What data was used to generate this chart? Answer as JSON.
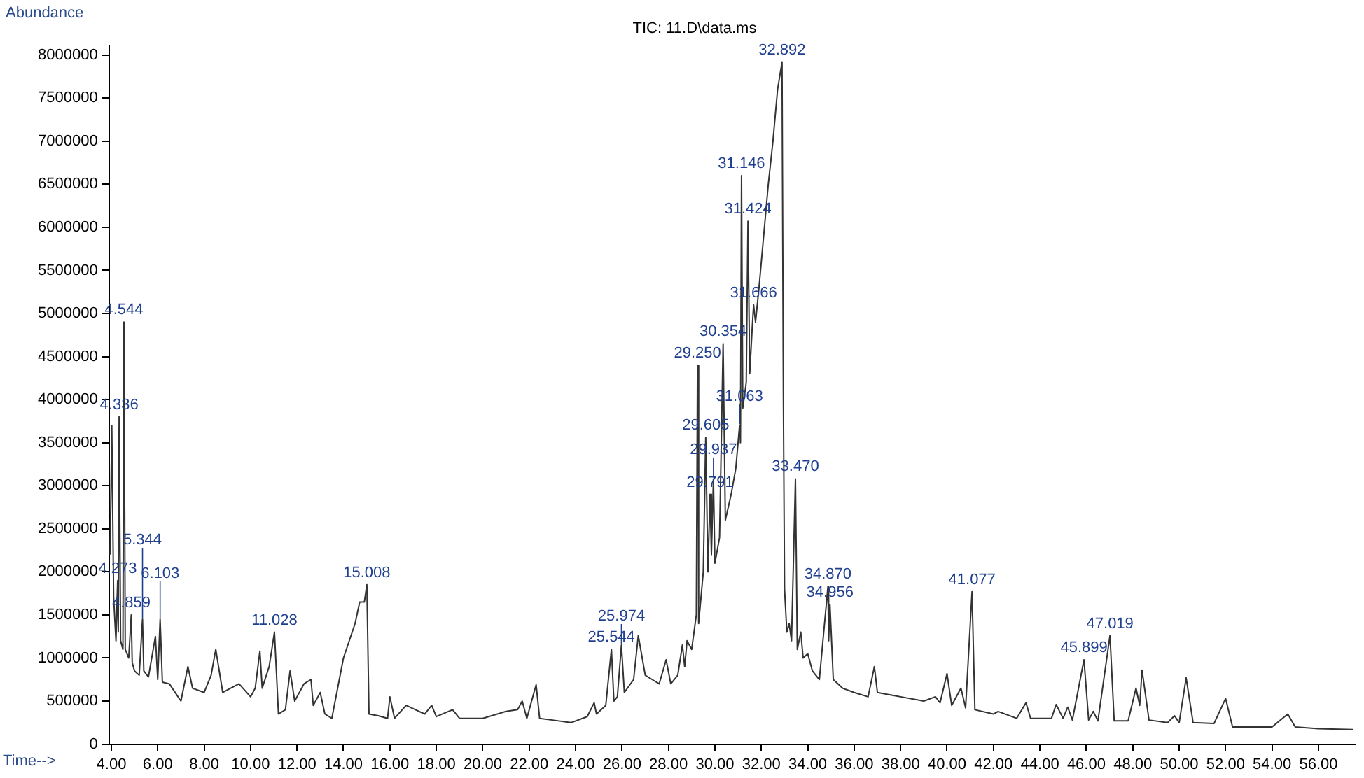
{
  "chart_data": {
    "type": "line",
    "title": "TIC: 11.D\\data.ms",
    "xlabel": "Time-->",
    "ylabel": "Abundance",
    "xlim": [
      3.9,
      57.6
    ],
    "ylim": [
      0,
      8100000
    ],
    "xticks": [
      {
        "value": 4,
        "label": "4.00"
      },
      {
        "value": 6,
        "label": "6.00"
      },
      {
        "value": 8,
        "label": "8.00"
      },
      {
        "value": 10,
        "label": "10.00"
      },
      {
        "value": 12,
        "label": "12.00"
      },
      {
        "value": 14,
        "label": "14.00"
      },
      {
        "value": 16,
        "label": "16.00"
      },
      {
        "value": 18,
        "label": "18.00"
      },
      {
        "value": 20,
        "label": "20.00"
      },
      {
        "value": 22,
        "label": "22.00"
      },
      {
        "value": 24,
        "label": "24.00"
      },
      {
        "value": 26,
        "label": "26.00"
      },
      {
        "value": 28,
        "label": "28.00"
      },
      {
        "value": 30,
        "label": "30.00"
      },
      {
        "value": 32,
        "label": "32.00"
      },
      {
        "value": 34,
        "label": "34.00"
      },
      {
        "value": 36,
        "label": "36.00"
      },
      {
        "value": 38,
        "label": "38.00"
      },
      {
        "value": 40,
        "label": "40.00"
      },
      {
        "value": 42,
        "label": "42.00"
      },
      {
        "value": 44,
        "label": "44.00"
      },
      {
        "value": 46,
        "label": "46.00"
      },
      {
        "value": 48,
        "label": "48.00"
      },
      {
        "value": 50,
        "label": "50.00"
      },
      {
        "value": 52,
        "label": "52.00"
      },
      {
        "value": 54,
        "label": "54.00"
      },
      {
        "value": 56,
        "label": "56.00"
      }
    ],
    "yticks": [
      0,
      500000,
      1000000,
      1500000,
      2000000,
      2500000,
      3000000,
      3500000,
      4000000,
      4500000,
      5000000,
      5500000,
      6000000,
      6500000,
      7000000,
      7500000,
      8000000
    ],
    "grid": false,
    "legend": false,
    "marker": "none",
    "line_style": "solid",
    "series": [
      {
        "color": "#333333",
        "x": [
          3.95,
          4.02,
          4.1,
          4.2,
          4.273,
          4.3,
          4.336,
          4.4,
          4.5,
          4.544,
          4.6,
          4.75,
          4.859,
          4.9,
          5.0,
          5.2,
          5.344,
          5.4,
          5.6,
          5.9,
          6.0,
          6.103,
          6.2,
          6.5,
          7.0,
          7.3,
          7.5,
          8.0,
          8.3,
          8.5,
          8.8,
          9.5,
          10.0,
          10.2,
          10.4,
          10.5,
          10.8,
          11.028,
          11.2,
          11.5,
          11.7,
          11.9,
          12.3,
          12.6,
          12.7,
          13.0,
          13.2,
          13.5,
          14.0,
          14.5,
          14.7,
          14.9,
          15.008,
          15.1,
          15.5,
          15.9,
          16.0,
          16.2,
          16.7,
          17.5,
          17.8,
          18.0,
          18.7,
          19.0,
          20.0,
          21.0,
          21.5,
          21.7,
          21.9,
          22.3,
          22.45,
          23.0,
          23.8,
          24.5,
          24.8,
          24.9,
          25.3,
          25.544,
          25.65,
          25.8,
          25.974,
          26.1,
          26.5,
          26.7,
          27.0,
          27.3,
          27.6,
          27.9,
          28.1,
          28.4,
          28.6,
          28.7,
          28.8,
          29.0,
          29.2,
          29.25,
          29.3,
          29.5,
          29.605,
          29.7,
          29.791,
          29.85,
          29.937,
          30.0,
          30.2,
          30.354,
          30.45,
          30.7,
          30.9,
          31.063,
          31.1,
          31.146,
          31.2,
          31.35,
          31.424,
          31.5,
          31.6,
          31.666,
          31.75,
          31.9,
          32.1,
          32.3,
          32.5,
          32.7,
          32.892,
          32.95,
          33.0,
          33.1,
          33.2,
          33.3,
          33.47,
          33.55,
          33.7,
          33.8,
          34.0,
          34.2,
          34.5,
          34.87,
          34.9,
          34.956,
          35.1,
          35.5,
          36.0,
          36.6,
          36.87,
          37.0,
          38.0,
          39.0,
          39.5,
          39.7,
          40.0,
          40.2,
          40.6,
          40.8,
          41.077,
          41.2,
          42.0,
          42.2,
          43.0,
          43.4,
          43.6,
          44.5,
          44.7,
          45.0,
          45.2,
          45.4,
          45.899,
          46.1,
          46.3,
          46.5,
          47.019,
          47.2,
          47.8,
          48.14,
          48.3,
          48.4,
          48.7,
          49.5,
          49.8,
          50.0,
          50.3,
          50.6,
          51.5,
          52.0,
          52.3,
          54.0,
          54.68,
          55.0,
          56.0,
          57.5
        ],
        "values": [
          2200000,
          3700000,
          1700000,
          1200000,
          1900000,
          1300000,
          3800000,
          1200000,
          1100000,
          4900000,
          1100000,
          1000000,
          1500000,
          950000,
          850000,
          800000,
          1450000,
          850000,
          780000,
          1250000,
          750000,
          1450000,
          720000,
          700000,
          500000,
          900000,
          650000,
          600000,
          800000,
          1100000,
          600000,
          700000,
          550000,
          650000,
          1080000,
          650000,
          900000,
          1300000,
          350000,
          400000,
          850000,
          500000,
          700000,
          750000,
          450000,
          600000,
          350000,
          300000,
          1000000,
          1400000,
          1650000,
          1650000,
          1850000,
          350000,
          330000,
          300000,
          550000,
          300000,
          450000,
          350000,
          450000,
          320000,
          400000,
          300000,
          300000,
          380000,
          400000,
          500000,
          300000,
          690000,
          300000,
          280000,
          250000,
          320000,
          480000,
          350000,
          450000,
          1100000,
          500000,
          550000,
          1150000,
          600000,
          750000,
          1260000,
          800000,
          750000,
          700000,
          980000,
          700000,
          800000,
          1150000,
          900000,
          1200000,
          1100000,
          1500000,
          4400000,
          1400000,
          2000000,
          3560000,
          2000000,
          2900000,
          2200000,
          3080000,
          2100000,
          2400000,
          4650000,
          2600000,
          2900000,
          3200000,
          3700000,
          3500000,
          6600000,
          3900000,
          4200000,
          6070000,
          4300000,
          4800000,
          5100000,
          4900000,
          5300000,
          5900000,
          6500000,
          7000000,
          7600000,
          7920000,
          4000000,
          1800000,
          1300000,
          1400000,
          1200000,
          3080000,
          1100000,
          1300000,
          1000000,
          1050000,
          850000,
          750000,
          1830000,
          1200000,
          1620000,
          750000,
          650000,
          600000,
          550000,
          900000,
          600000,
          550000,
          500000,
          550000,
          480000,
          820000,
          450000,
          650000,
          420000,
          1770000,
          400000,
          350000,
          380000,
          300000,
          480000,
          300000,
          300000,
          460000,
          300000,
          430000,
          280000,
          980000,
          280000,
          380000,
          270000,
          1260000,
          270000,
          270000,
          650000,
          450000,
          860000,
          280000,
          250000,
          330000,
          250000,
          770000,
          250000,
          240000,
          530000,
          200000,
          200000,
          350000,
          200000,
          180000,
          170000
        ]
      }
    ],
    "annotations": [
      {
        "text": "4.336",
        "x": 4.336,
        "y": 3800000
      },
      {
        "text": "4.544",
        "x": 4.544,
        "y": 4900000
      },
      {
        "text": "4.273",
        "x": 4.273,
        "y": 1900000
      },
      {
        "text": "4.859",
        "x": 4.859,
        "y": 1500000
      },
      {
        "text": "5.344",
        "x": 5.344,
        "y": 1450000
      },
      {
        "text": "6.103",
        "x": 6.103,
        "y": 1450000
      },
      {
        "text": "11.028",
        "x": 11.028,
        "y": 1300000
      },
      {
        "text": "15.008",
        "x": 15.008,
        "y": 1850000
      },
      {
        "text": "25.544",
        "x": 25.544,
        "y": 1100000
      },
      {
        "text": "25.974",
        "x": 25.974,
        "y": 1150000
      },
      {
        "text": "29.250",
        "x": 29.25,
        "y": 4400000
      },
      {
        "text": "29.605",
        "x": 29.605,
        "y": 3560000
      },
      {
        "text": "29.791",
        "x": 29.791,
        "y": 2900000
      },
      {
        "text": "29.937",
        "x": 29.937,
        "y": 3080000
      },
      {
        "text": "30.354",
        "x": 30.354,
        "y": 4650000
      },
      {
        "text": "31.063",
        "x": 31.063,
        "y": 3700000
      },
      {
        "text": "31.146",
        "x": 31.146,
        "y": 6600000
      },
      {
        "text": "31.424",
        "x": 31.424,
        "y": 6070000
      },
      {
        "text": "31.666",
        "x": 31.666,
        "y": 5100000
      },
      {
        "text": "32.892",
        "x": 32.892,
        "y": 7920000
      },
      {
        "text": "33.470",
        "x": 33.47,
        "y": 3080000
      },
      {
        "text": "34.870",
        "x": 34.87,
        "y": 1830000
      },
      {
        "text": "34.956",
        "x": 34.956,
        "y": 1620000
      },
      {
        "text": "41.077",
        "x": 41.077,
        "y": 1770000
      },
      {
        "text": "45.899",
        "x": 45.899,
        "y": 980000
      },
      {
        "text": "47.019",
        "x": 47.019,
        "y": 1260000
      }
    ]
  }
}
